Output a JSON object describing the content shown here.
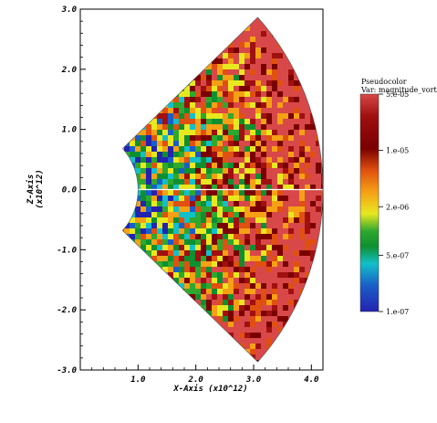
{
  "chart_data": {
    "type": "heatmap",
    "title": "",
    "xlabel": "X-Axis (x10^12)",
    "ylabel": "Z-Axis (x10^12)",
    "xlim": [
      0,
      4.2
    ],
    "ylim": [
      -3.0,
      3.0
    ],
    "x_ticks": [
      "1.0",
      "2.0",
      "3.0",
      "4.0"
    ],
    "x_tick_values": [
      1.0,
      2.0,
      3.0,
      4.0
    ],
    "y_ticks": [
      "3.0",
      "2.0",
      "1.0",
      "0.0",
      "-1.0",
      "-2.0",
      "-3.0"
    ],
    "y_tick_values": [
      3.0,
      2.0,
      1.0,
      0.0,
      -1.0,
      -2.0,
      -3.0
    ],
    "domain": {
      "shape": "annular-sector",
      "inner_radius": 1.0,
      "outer_radius": 4.2,
      "angle_range_deg": [
        -43,
        43
      ]
    },
    "legend": {
      "title": "Pseudocolor",
      "variable": "Var: magnitude_vortic",
      "scale": "log",
      "range": [
        1e-07,
        5e-05
      ],
      "ticks": [
        "5.e-05",
        "1.e-05",
        "2.e-06",
        "5.e-07",
        "1.e-07"
      ],
      "tick_values": [
        5e-05,
        1e-05,
        2e-06,
        5e-07,
        1e-07
      ],
      "placement": "right"
    }
  },
  "colors": {
    "colormap": [
      "#2323b0",
      "#1a5ec8",
      "#12c0c8",
      "#2ea82e",
      "#0f9030",
      "#e8e820",
      "#f5a015",
      "#e05010",
      "#a01010",
      "#7a0000",
      "#d84848"
    ]
  }
}
